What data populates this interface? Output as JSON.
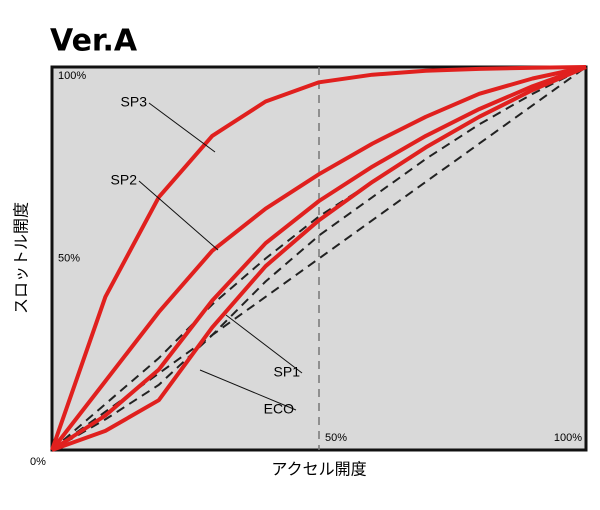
{
  "chart_data": {
    "type": "line",
    "title": "Ver.A",
    "x_label": "アクセル開度",
    "y_label": "スロットル開度",
    "x": [
      0,
      10,
      20,
      30,
      40,
      50,
      60,
      70,
      80,
      90,
      100
    ],
    "xlim": [
      0,
      100
    ],
    "ylim": [
      0,
      100
    ],
    "xticks": [
      {
        "value": 50,
        "label": "50%"
      },
      {
        "value": 100,
        "label": "100%"
      }
    ],
    "yticks": [
      {
        "value": 0,
        "label": "0%"
      },
      {
        "value": 50,
        "label": "50%"
      },
      {
        "value": 100,
        "label": "100%"
      }
    ],
    "series": [
      {
        "name": "SP3",
        "color": "#e0201e",
        "values": [
          0,
          40,
          66,
          82,
          91,
          96,
          98,
          99,
          99.5,
          99.8,
          100
        ]
      },
      {
        "name": "SP2",
        "color": "#e0201e",
        "values": [
          0,
          18,
          36,
          52,
          63,
          72,
          80,
          87,
          93,
          97,
          100
        ]
      },
      {
        "name": "SP1",
        "color": "#e0201e",
        "values": [
          0,
          9,
          21,
          39,
          54,
          65,
          74,
          82,
          89,
          95,
          100
        ]
      },
      {
        "name": "ECO",
        "color": "#e0201e",
        "values": [
          0,
          5,
          13,
          32,
          48,
          60,
          70,
          79,
          87,
          94,
          100
        ]
      },
      {
        "color": "#222222",
        "dashed": true,
        "values": [
          0,
          12,
          24,
          38,
          50,
          61,
          70,
          79,
          87,
          94,
          100
        ]
      },
      {
        "color": "#222222",
        "dashed": true,
        "values": [
          0,
          8,
          17,
          30,
          44,
          56,
          66,
          76,
          85,
          93,
          100
        ]
      },
      {
        "color": "#222222",
        "dashed": true,
        "values": [
          0,
          10,
          20,
          30,
          40,
          50,
          60,
          70,
          80,
          90,
          100
        ]
      }
    ]
  }
}
